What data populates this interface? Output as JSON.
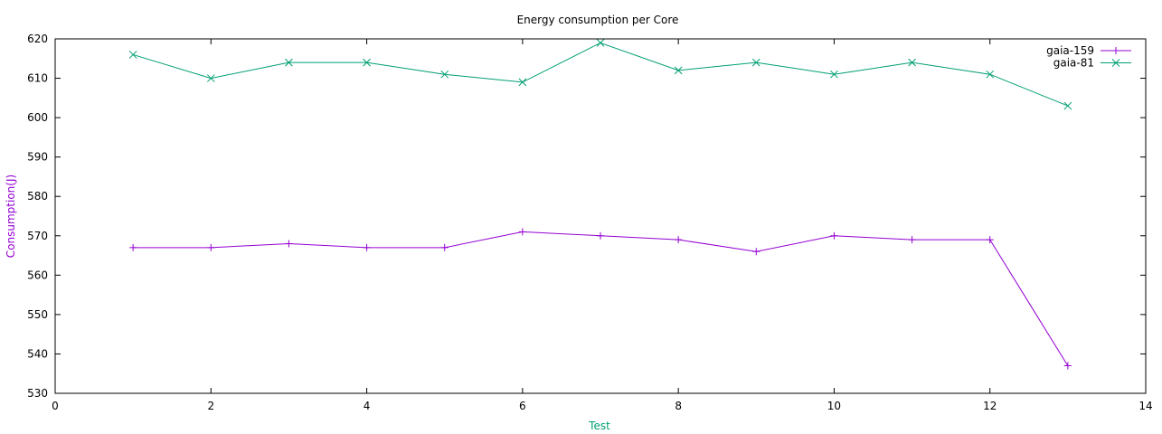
{
  "chart_data": {
    "type": "line",
    "title": "Energy consumption per Core",
    "xlabel": "Test",
    "ylabel": "Consumption(J)",
    "xlabel_color": "#009e73",
    "ylabel_color": "#9400d3",
    "xlim": [
      0,
      14
    ],
    "ylim": [
      530,
      620
    ],
    "xticks": [
      0,
      2,
      4,
      6,
      8,
      10,
      12,
      14
    ],
    "yticks": [
      530,
      540,
      550,
      560,
      570,
      580,
      590,
      600,
      610,
      620
    ],
    "legend_position": "top-right",
    "grid": false,
    "x": [
      1,
      2,
      3,
      4,
      5,
      6,
      7,
      8,
      9,
      10,
      11,
      12,
      13
    ],
    "series": [
      {
        "name": "gaia-159",
        "color": "#9400d3",
        "marker": "plus",
        "values": [
          567,
          567,
          568,
          567,
          567,
          571,
          570,
          569,
          566,
          570,
          569,
          569,
          537
        ]
      },
      {
        "name": "gaia-81",
        "color": "#009e73",
        "marker": "cross",
        "values": [
          616,
          610,
          614,
          614,
          611,
          609,
          619,
          612,
          614,
          611,
          614,
          611,
          603
        ]
      }
    ]
  }
}
